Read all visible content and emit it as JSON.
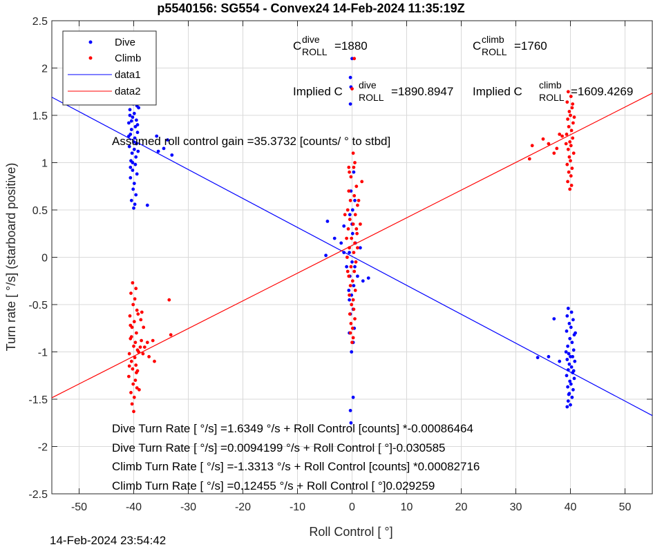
{
  "chart_data": {
    "type": "scatter",
    "title": "p5540156: SG554 - Convex24 14-Feb-2024 11:35:19Z",
    "xlabel": "Roll Control [   °]",
    "ylabel": "Turn rate [   °/s] (starboard positive)",
    "xlim": [
      -55,
      55
    ],
    "ylim": [
      -2.5,
      2.5
    ],
    "x_ticks": [
      -50,
      -40,
      -30,
      -20,
      -10,
      0,
      10,
      20,
      30,
      40,
      50
    ],
    "y_ticks": [
      -2.5,
      -2,
      -1.5,
      -1,
      -0.5,
      0,
      0.5,
      1,
      1.5,
      2,
      2.5
    ],
    "y_tick_labels": [
      "-2.5",
      "-2",
      "-1.5",
      "-1",
      "-0.5",
      "0",
      "0.5",
      "1",
      "1.5",
      "2",
      "2.5"
    ],
    "grid": true,
    "legend": {
      "position": "top-left",
      "entries": [
        {
          "name": "Dive",
          "kind": "marker",
          "color": "#0000ff"
        },
        {
          "name": "Climb",
          "kind": "marker",
          "color": "#ff0000"
        },
        {
          "name": "data1",
          "kind": "line",
          "color": "#0000ff"
        },
        {
          "name": "data2",
          "kind": "line",
          "color": "#ff0000"
        }
      ]
    },
    "colors": {
      "dive": "#0000ff",
      "climb": "#ff0000"
    },
    "fit_lines": [
      {
        "name": "data1",
        "color": "#0000ff",
        "slope": -0.030585,
        "intercept": 0.0094199
      },
      {
        "name": "data2",
        "color": "#ff0000",
        "slope": 0.029259,
        "intercept": 0.12455
      }
    ],
    "series": [
      {
        "name": "Dive",
        "color": "#0000ff",
        "points": [
          [
            -40.3,
            1.85
          ],
          [
            -39.6,
            1.82
          ],
          [
            -40.8,
            1.78
          ],
          [
            -39.2,
            1.75
          ],
          [
            -40.5,
            1.7
          ],
          [
            -39.8,
            1.66
          ],
          [
            -40.1,
            1.62
          ],
          [
            -39.4,
            1.6
          ],
          [
            -40.7,
            1.56
          ],
          [
            -39.9,
            1.52
          ],
          [
            -40.2,
            1.48
          ],
          [
            -39.5,
            1.45
          ],
          [
            -40.9,
            1.42
          ],
          [
            -39.7,
            1.38
          ],
          [
            -40.4,
            1.35
          ],
          [
            -39.3,
            1.32
          ],
          [
            -40.6,
            1.3
          ],
          [
            -39.8,
            1.26
          ],
          [
            -40.0,
            1.22
          ],
          [
            -39.5,
            1.2
          ],
          [
            -40.8,
            1.17
          ],
          [
            -39.9,
            1.14
          ],
          [
            -40.3,
            1.1
          ],
          [
            -39.6,
            1.06
          ],
          [
            -40.5,
            1.02
          ],
          [
            -39.7,
            0.98
          ],
          [
            -40.2,
            0.92
          ],
          [
            -39.4,
            0.88
          ],
          [
            -40.6,
            0.84
          ],
          [
            -39.9,
            0.78
          ],
          [
            -40.1,
            0.72
          ],
          [
            -39.6,
            0.66
          ],
          [
            -40.4,
            0.6
          ],
          [
            -39.8,
            0.56
          ],
          [
            -40.0,
            0.52
          ],
          [
            -37.5,
            0.55
          ],
          [
            -35.8,
            1.28
          ],
          [
            -35.5,
            1.12
          ],
          [
            -34.5,
            1.15
          ],
          [
            -33.8,
            1.24
          ],
          [
            -33.0,
            1.08
          ],
          [
            -40.7,
            1.5
          ],
          [
            -39.3,
            1.4
          ],
          [
            -40.9,
            1.28
          ],
          [
            -40.2,
            1.0
          ],
          [
            -39.2,
            1.12
          ],
          [
            -40.6,
            0.95
          ],
          [
            -39.1,
            1.58
          ],
          [
            -40.4,
            1.44
          ],
          [
            -39.7,
            1.72
          ],
          [
            -4.5,
            0.38
          ],
          [
            -4.8,
            0.02
          ],
          [
            -3.2,
            0.2
          ],
          [
            -2.0,
            0.15
          ],
          [
            -1.5,
            0.05
          ],
          [
            -1.5,
            0.33
          ],
          [
            -1.0,
            -0.1
          ],
          [
            -0.5,
            -0.45
          ],
          [
            1.0,
            -0.2
          ],
          [
            2.0,
            -0.25
          ],
          [
            3.0,
            -0.22
          ],
          [
            1.5,
            0.1
          ],
          [
            0.5,
            0.6
          ],
          [
            -0.3,
            1.9
          ],
          [
            -0.2,
            1.8
          ],
          [
            -0.3,
            1.62
          ],
          [
            0.0,
            2.1
          ],
          [
            -0.2,
            -1.75
          ],
          [
            -0.3,
            -1.62
          ],
          [
            0.2,
            -1.48
          ],
          [
            -0.5,
            -0.8
          ],
          [
            0.4,
            -0.75
          ],
          [
            -0.1,
            -0.4
          ],
          [
            0.1,
            0.25
          ],
          [
            -0.4,
            0.45
          ],
          [
            0.3,
            -0.3
          ],
          [
            -0.2,
            0.7
          ],
          [
            0.2,
            -0.55
          ],
          [
            -0.5,
            0.05
          ],
          [
            0.5,
            -0.1
          ],
          [
            -0.1,
            -1.0
          ],
          [
            0.3,
            0.9
          ],
          [
            -0.3,
            -0.6
          ],
          [
            0.0,
            0.35
          ],
          [
            0.2,
            -0.9
          ],
          [
            -0.4,
            -0.2
          ],
          [
            0.1,
            0.5
          ],
          [
            0.6,
            0.15
          ],
          [
            -0.6,
            -0.35
          ],
          [
            0.0,
            -0.05
          ],
          [
            39.6,
            -0.54
          ],
          [
            40.2,
            -0.58
          ],
          [
            39.4,
            -0.62
          ],
          [
            40.5,
            -0.66
          ],
          [
            39.8,
            -0.7
          ],
          [
            40.1,
            -0.74
          ],
          [
            39.3,
            -0.78
          ],
          [
            40.7,
            -0.82
          ],
          [
            39.9,
            -0.86
          ],
          [
            40.3,
            -0.9
          ],
          [
            39.5,
            -0.94
          ],
          [
            40.6,
            -0.98
          ],
          [
            39.7,
            -1.02
          ],
          [
            40.0,
            -1.05
          ],
          [
            39.4,
            -1.08
          ],
          [
            40.8,
            -1.1
          ],
          [
            39.8,
            -1.13
          ],
          [
            40.2,
            -1.16
          ],
          [
            39.6,
            -1.19
          ],
          [
            40.4,
            -1.22
          ],
          [
            39.3,
            -1.25
          ],
          [
            40.7,
            -1.28
          ],
          [
            39.9,
            -1.31
          ],
          [
            40.1,
            -1.34
          ],
          [
            39.5,
            -1.37
          ],
          [
            40.5,
            -1.4
          ],
          [
            39.8,
            -1.44
          ],
          [
            40.3,
            -1.48
          ],
          [
            39.6,
            -1.52
          ],
          [
            40.0,
            -1.56
          ],
          [
            39.4,
            -1.58
          ],
          [
            34.0,
            -1.06
          ],
          [
            36.0,
            -1.05
          ],
          [
            37.0,
            -0.65
          ],
          [
            38.0,
            -1.1
          ],
          [
            40.6,
            -1.2
          ],
          [
            39.2,
            -1.0
          ],
          [
            40.9,
            -0.8
          ],
          [
            39.7,
            -1.45
          ],
          [
            40.4,
            -1.05
          ]
        ]
      },
      {
        "name": "Climb",
        "color": "#ff0000",
        "points": [
          [
            -40.2,
            -0.27
          ],
          [
            -39.6,
            -0.33
          ],
          [
            -40.5,
            -0.38
          ],
          [
            -39.8,
            -0.44
          ],
          [
            -40.1,
            -0.5
          ],
          [
            -39.4,
            -0.56
          ],
          [
            -40.7,
            -0.62
          ],
          [
            -39.9,
            -0.68
          ],
          [
            -40.3,
            -0.74
          ],
          [
            -39.5,
            -0.8
          ],
          [
            -40.6,
            -0.86
          ],
          [
            -39.7,
            -0.9
          ],
          [
            -40.0,
            -0.94
          ],
          [
            -39.3,
            -0.98
          ],
          [
            -40.8,
            -1.02
          ],
          [
            -39.8,
            -1.06
          ],
          [
            -40.4,
            -1.1
          ],
          [
            -39.6,
            -1.14
          ],
          [
            -40.2,
            -1.18
          ],
          [
            -39.5,
            -1.22
          ],
          [
            -40.9,
            -1.26
          ],
          [
            -39.7,
            -1.3
          ],
          [
            -40.1,
            -1.34
          ],
          [
            -39.4,
            -1.38
          ],
          [
            -40.5,
            -1.43
          ],
          [
            -39.9,
            -1.48
          ],
          [
            -40.3,
            -1.55
          ],
          [
            -40.0,
            -1.63
          ],
          [
            -38.5,
            -0.58
          ],
          [
            -38.7,
            -0.66
          ],
          [
            -38.2,
            -0.74
          ],
          [
            -38.6,
            -0.88
          ],
          [
            -38.0,
            -0.95
          ],
          [
            -38.3,
            -1.02
          ],
          [
            -37.5,
            -0.9
          ],
          [
            -37.2,
            -1.05
          ],
          [
            -36.5,
            -0.88
          ],
          [
            -36.2,
            -1.1
          ],
          [
            -33.2,
            -0.82
          ],
          [
            -33.5,
            -0.45
          ],
          [
            -39.2,
            -0.6
          ],
          [
            -40.6,
            -0.72
          ],
          [
            -39.1,
            -1.0
          ],
          [
            -40.8,
            -1.15
          ],
          [
            -39.3,
            -1.2
          ],
          [
            -40.4,
            -0.84
          ],
          [
            -38.8,
            -0.95
          ],
          [
            -39.0,
            -1.4
          ],
          [
            0.5,
            1.0
          ],
          [
            -0.5,
            0.9
          ],
          [
            0.3,
            0.95
          ],
          [
            -0.2,
            0.85
          ],
          [
            0.8,
            0.75
          ],
          [
            -0.6,
            0.7
          ],
          [
            0.4,
            0.65
          ],
          [
            -0.3,
            0.6
          ],
          [
            1.0,
            0.55
          ],
          [
            -0.8,
            0.5
          ],
          [
            0.6,
            0.45
          ],
          [
            -0.4,
            0.4
          ],
          [
            0.2,
            0.35
          ],
          [
            -0.7,
            0.3
          ],
          [
            0.9,
            0.25
          ],
          [
            -0.1,
            0.2
          ],
          [
            0.5,
            0.15
          ],
          [
            -0.5,
            0.1
          ],
          [
            0.3,
            0.05
          ],
          [
            -0.9,
            0.0
          ],
          [
            0.7,
            -0.05
          ],
          [
            -0.2,
            -0.1
          ],
          [
            0.4,
            -0.15
          ],
          [
            -0.6,
            -0.2
          ],
          [
            0.1,
            -0.25
          ],
          [
            -0.3,
            -0.3
          ],
          [
            0.6,
            -0.35
          ],
          [
            -0.5,
            -0.4
          ],
          [
            0.2,
            -0.45
          ],
          [
            -0.1,
            -0.5
          ],
          [
            0.3,
            -0.55
          ],
          [
            -0.4,
            -0.6
          ],
          [
            0.5,
            -0.65
          ],
          [
            -0.2,
            -0.7
          ],
          [
            0.1,
            -0.75
          ],
          [
            -0.3,
            -0.8
          ],
          [
            0.2,
            -0.85
          ],
          [
            0.0,
            -0.9
          ],
          [
            1.2,
            0.6
          ],
          [
            -1.0,
            0.2
          ],
          [
            1.5,
            0.35
          ],
          [
            -1.3,
            0.45
          ],
          [
            1.8,
            0.8
          ],
          [
            0.0,
            1.78
          ],
          [
            0.4,
            2.1
          ],
          [
            0.2,
            1.1
          ],
          [
            -0.6,
            0.95
          ],
          [
            0.8,
            0.3
          ],
          [
            -0.8,
            -0.15
          ],
          [
            1.0,
            0.1
          ],
          [
            39.6,
            1.75
          ],
          [
            40.1,
            1.7
          ],
          [
            39.4,
            1.64
          ],
          [
            40.3,
            1.58
          ],
          [
            39.8,
            1.54
          ],
          [
            40.0,
            1.5
          ],
          [
            39.5,
            1.46
          ],
          [
            40.5,
            1.42
          ],
          [
            39.7,
            1.38
          ],
          [
            40.2,
            1.34
          ],
          [
            39.3,
            1.3
          ],
          [
            40.4,
            1.26
          ],
          [
            39.9,
            1.22
          ],
          [
            40.1,
            1.18
          ],
          [
            39.6,
            1.14
          ],
          [
            40.6,
            1.1
          ],
          [
            39.8,
            1.06
          ],
          [
            40.0,
            1.02
          ],
          [
            39.4,
            0.98
          ],
          [
            40.3,
            0.94
          ],
          [
            39.7,
            0.9
          ],
          [
            40.1,
            0.86
          ],
          [
            39.5,
            0.8
          ],
          [
            40.2,
            0.76
          ],
          [
            39.9,
            0.72
          ],
          [
            32.5,
            1.04
          ],
          [
            33.0,
            1.18
          ],
          [
            35.0,
            1.25
          ],
          [
            36.0,
            1.2
          ],
          [
            37.0,
            1.1
          ],
          [
            37.5,
            1.15
          ],
          [
            38.0,
            1.3
          ],
          [
            38.5,
            1.28
          ],
          [
            40.7,
            1.48
          ],
          [
            39.2,
            1.2
          ],
          [
            40.4,
            1.62
          ]
        ]
      }
    ],
    "annotations": {
      "c_dive": {
        "base": "C",
        "sup": "dive",
        "sub": "ROLL",
        "value": "=1880"
      },
      "c_climb": {
        "base": "C",
        "sup": "climb",
        "sub": "ROLL",
        "value": "=1760"
      },
      "implied_dive": {
        "prefix": "Implied C",
        "sup": "dive",
        "sub": "ROLL",
        "value": "=1890.8947"
      },
      "implied_climb": {
        "prefix": "Implied C",
        "sup": "climb",
        "sub": "ROLL",
        "value": "=1609.4269"
      },
      "gain": "Assumed roll control gain =35.3732 [counts/          ° to stbd]",
      "eq_lines": [
        "Dive Turn Rate [    °/s] =1.6349     °/s + Roll Control [counts] *-0.00086464",
        "Dive Turn Rate [    °/s] =0.0094199      °/s + Roll Control [     °]-0.030585",
        "Climb Turn Rate [    °/s] =-1.3313     °/s + Roll Control [counts] *0.00082716",
        "Climb Turn Rate [    °/s] =0.12455     °/s + Roll Control [    °]0.029259"
      ]
    }
  },
  "timestamp": "14-Feb-2024 23:54:42"
}
